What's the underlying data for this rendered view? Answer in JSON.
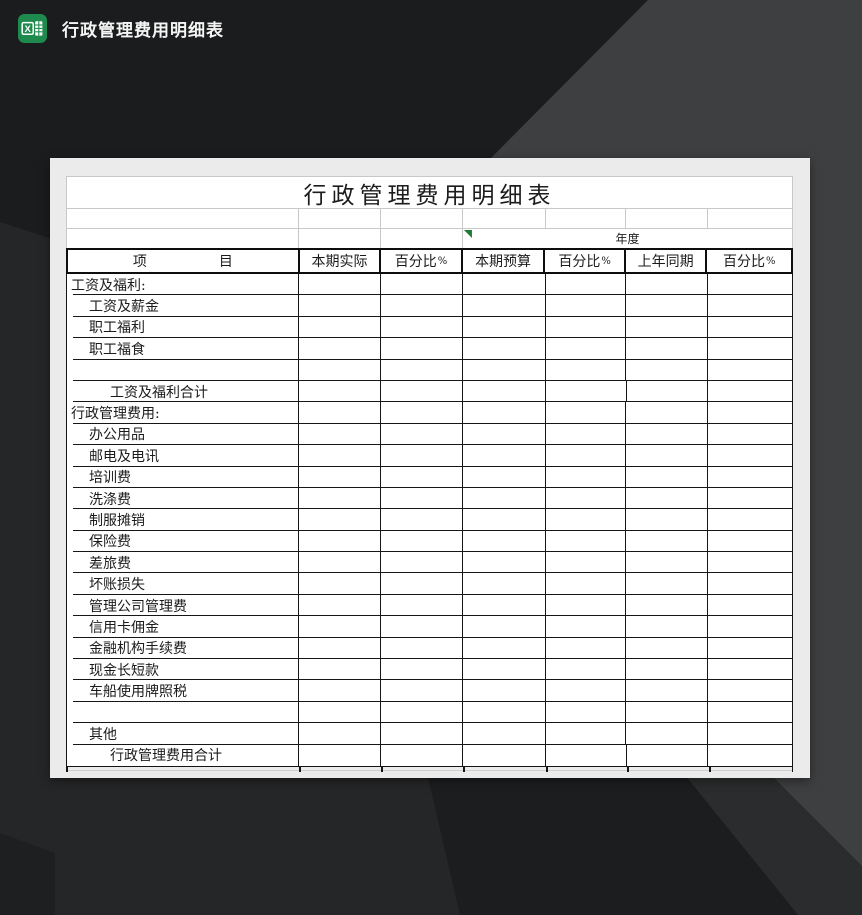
{
  "app": {
    "window_title": "行政管理费用明细表",
    "icon": "excel-icon"
  },
  "sheet": {
    "title": "行政管理费用明细表",
    "year_label": "年度",
    "columns": [
      "项目",
      "本期实际",
      "百分比%",
      "本期预算",
      "百分比%",
      "上年同期",
      "百分比%"
    ],
    "rows": [
      {
        "label": "工资及福利:",
        "indent": 0
      },
      {
        "label": "工资及薪金",
        "indent": 1
      },
      {
        "label": "职工福利",
        "indent": 1
      },
      {
        "label": "职工福食",
        "indent": 1
      },
      {
        "label": "",
        "indent": 0
      },
      {
        "label": "工资及福利合计",
        "indent": 2
      },
      {
        "label": "行政管理费用:",
        "indent": 0
      },
      {
        "label": "办公用品",
        "indent": 1
      },
      {
        "label": "邮电及电讯",
        "indent": 1
      },
      {
        "label": "培训费",
        "indent": 1
      },
      {
        "label": "洗涤费",
        "indent": 1
      },
      {
        "label": "制服摊销",
        "indent": 1
      },
      {
        "label": "保险费",
        "indent": 1
      },
      {
        "label": "差旅费",
        "indent": 1
      },
      {
        "label": "坏账损失",
        "indent": 1
      },
      {
        "label": "管理公司管理费",
        "indent": 1
      },
      {
        "label": "信用卡佣金",
        "indent": 1
      },
      {
        "label": "金融机构手续费",
        "indent": 1
      },
      {
        "label": "现金长短款",
        "indent": 1
      },
      {
        "label": "车船使用牌照税",
        "indent": 1
      },
      {
        "label": "",
        "indent": 0
      },
      {
        "label": "其他",
        "indent": 1
      },
      {
        "label": "行政管理费用合计",
        "indent": 2
      }
    ],
    "all_value_cells_empty": true
  },
  "colors": {
    "excel_green": "#1E8A4E",
    "indicator_green": "#1F7A36",
    "card_bg": "#EBEBEB",
    "grid_gray": "#C8C8C8",
    "border_black": "#161616",
    "bg_base": "#252627",
    "bg_top_dark": "#1B1C1D",
    "bg_light_band": "#3E3F40",
    "bg_corner_mid": "#2B2C2D",
    "bg_corner_dark": "#1C1D1E",
    "title_text": "#F5F5F5"
  }
}
